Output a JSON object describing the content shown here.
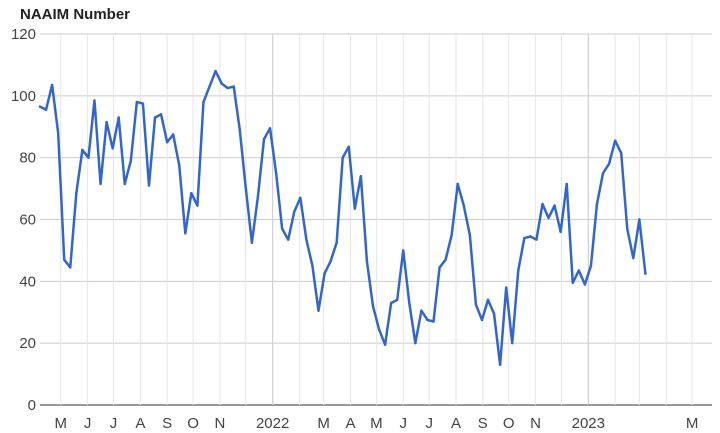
{
  "chart_data": {
    "type": "line",
    "title": "NAAIM Number",
    "xlabel": "",
    "ylabel": "",
    "ylim": [
      0,
      120
    ],
    "y_ticks": [
      "0",
      "20",
      "40",
      "60",
      "80",
      "100",
      "120"
    ],
    "x_range": [
      "2021-04-07",
      "2023-05-24"
    ],
    "x_ticks": [
      {
        "label": "M",
        "date": "2021-05-01"
      },
      {
        "label": "J",
        "date": "2021-06-01"
      },
      {
        "label": "J",
        "date": "2021-07-01"
      },
      {
        "label": "A",
        "date": "2021-08-01"
      },
      {
        "label": "S",
        "date": "2021-09-01"
      },
      {
        "label": "O",
        "date": "2021-10-01"
      },
      {
        "label": "N",
        "date": "2021-11-01"
      },
      {
        "label": "2022",
        "date": "2022-01-01"
      },
      {
        "label": "M",
        "date": "2022-03-01"
      },
      {
        "label": "A",
        "date": "2022-04-01"
      },
      {
        "label": "M",
        "date": "2022-05-01"
      },
      {
        "label": "J",
        "date": "2022-06-01"
      },
      {
        "label": "J",
        "date": "2022-07-01"
      },
      {
        "label": "A",
        "date": "2022-08-01"
      },
      {
        "label": "S",
        "date": "2022-09-01"
      },
      {
        "label": "O",
        "date": "2022-10-01"
      },
      {
        "label": "N",
        "date": "2022-11-01"
      },
      {
        "label": "2023",
        "date": "2023-01-01"
      },
      {
        "label": "M",
        "date": "2023-05-01"
      }
    ],
    "minor_gridlines": [
      "2021-12-01",
      "2022-02-01",
      "2022-12-01",
      "2023-02-01",
      "2023-03-01",
      "2023-04-01"
    ],
    "major_gridlines": [
      "2022-01-01",
      "2023-01-01"
    ],
    "grid": true,
    "legend": "none",
    "series": [
      {
        "color": "#3366cc",
        "points": [
          [
            "2021-04-07",
            96.5
          ],
          [
            "2021-04-14",
            95.5
          ],
          [
            "2021-04-21",
            103.5
          ],
          [
            "2021-04-28",
            88
          ],
          [
            "2021-05-05",
            47
          ],
          [
            "2021-05-12",
            44.5
          ],
          [
            "2021-05-19",
            68.5
          ],
          [
            "2021-05-26",
            82.5
          ],
          [
            "2021-06-02",
            80
          ],
          [
            "2021-06-09",
            98.5
          ],
          [
            "2021-06-16",
            71.5
          ],
          [
            "2021-06-23",
            91.5
          ],
          [
            "2021-06-30",
            83
          ],
          [
            "2021-07-07",
            93
          ],
          [
            "2021-07-14",
            71.5
          ],
          [
            "2021-07-21",
            79
          ],
          [
            "2021-07-28",
            98
          ],
          [
            "2021-08-04",
            97.5
          ],
          [
            "2021-08-11",
            71
          ],
          [
            "2021-08-18",
            93
          ],
          [
            "2021-08-25",
            94
          ],
          [
            "2021-09-01",
            85
          ],
          [
            "2021-09-08",
            87.5
          ],
          [
            "2021-09-15",
            77.5
          ],
          [
            "2021-09-22",
            55.5
          ],
          [
            "2021-09-29",
            68.5
          ],
          [
            "2021-10-06",
            64.5
          ],
          [
            "2021-10-13",
            98
          ],
          [
            "2021-10-20",
            103
          ],
          [
            "2021-10-27",
            108
          ],
          [
            "2021-11-03",
            104
          ],
          [
            "2021-11-10",
            102.5
          ],
          [
            "2021-11-17",
            103
          ],
          [
            "2021-11-24",
            89
          ],
          [
            "2021-12-01",
            70
          ],
          [
            "2021-12-08",
            52.5
          ],
          [
            "2021-12-15",
            67.5
          ],
          [
            "2021-12-22",
            86
          ],
          [
            "2021-12-29",
            89.5
          ],
          [
            "2022-01-05",
            75
          ],
          [
            "2022-01-12",
            57
          ],
          [
            "2022-01-19",
            53.5
          ],
          [
            "2022-01-26",
            62.5
          ],
          [
            "2022-02-02",
            67
          ],
          [
            "2022-02-09",
            53.5
          ],
          [
            "2022-02-16",
            45
          ],
          [
            "2022-02-23",
            30.5
          ],
          [
            "2022-03-02",
            42.5
          ],
          [
            "2022-03-09",
            46.5
          ],
          [
            "2022-03-16",
            52.5
          ],
          [
            "2022-03-23",
            80
          ],
          [
            "2022-03-30",
            83.5
          ],
          [
            "2022-04-06",
            63.5
          ],
          [
            "2022-04-13",
            74
          ],
          [
            "2022-04-20",
            46.5
          ],
          [
            "2022-04-27",
            32
          ],
          [
            "2022-05-04",
            24.5
          ],
          [
            "2022-05-11",
            19.5
          ],
          [
            "2022-05-18",
            33
          ],
          [
            "2022-05-25",
            34
          ],
          [
            "2022-06-01",
            50
          ],
          [
            "2022-06-08",
            33
          ],
          [
            "2022-06-15",
            20
          ],
          [
            "2022-06-22",
            30.5
          ],
          [
            "2022-06-29",
            27.5
          ],
          [
            "2022-07-06",
            27
          ],
          [
            "2022-07-13",
            44.5
          ],
          [
            "2022-07-20",
            47
          ],
          [
            "2022-07-27",
            55
          ],
          [
            "2022-08-03",
            71.5
          ],
          [
            "2022-08-10",
            64.5
          ],
          [
            "2022-08-17",
            55
          ],
          [
            "2022-08-24",
            32.5
          ],
          [
            "2022-08-31",
            27.5
          ],
          [
            "2022-09-07",
            34
          ],
          [
            "2022-09-14",
            29.5
          ],
          [
            "2022-09-21",
            13
          ],
          [
            "2022-09-28",
            38
          ],
          [
            "2022-10-05",
            20
          ],
          [
            "2022-10-12",
            43.5
          ],
          [
            "2022-10-19",
            54
          ],
          [
            "2022-10-26",
            54.5
          ],
          [
            "2022-11-02",
            53.5
          ],
          [
            "2022-11-09",
            65
          ],
          [
            "2022-11-16",
            60.5
          ],
          [
            "2022-11-23",
            64.5
          ],
          [
            "2022-11-30",
            56
          ],
          [
            "2022-12-07",
            71.5
          ],
          [
            "2022-12-14",
            39.5
          ],
          [
            "2022-12-21",
            43.5
          ],
          [
            "2022-12-28",
            39
          ],
          [
            "2023-01-04",
            45
          ],
          [
            "2023-01-11",
            65
          ],
          [
            "2023-01-18",
            75
          ],
          [
            "2023-01-25",
            78
          ],
          [
            "2023-02-01",
            85.5
          ],
          [
            "2023-02-08",
            81.5
          ],
          [
            "2023-02-15",
            57
          ],
          [
            "2023-02-22",
            47.5
          ],
          [
            "2023-03-01",
            60
          ],
          [
            "2023-03-08",
            42.5
          ]
        ]
      }
    ]
  }
}
